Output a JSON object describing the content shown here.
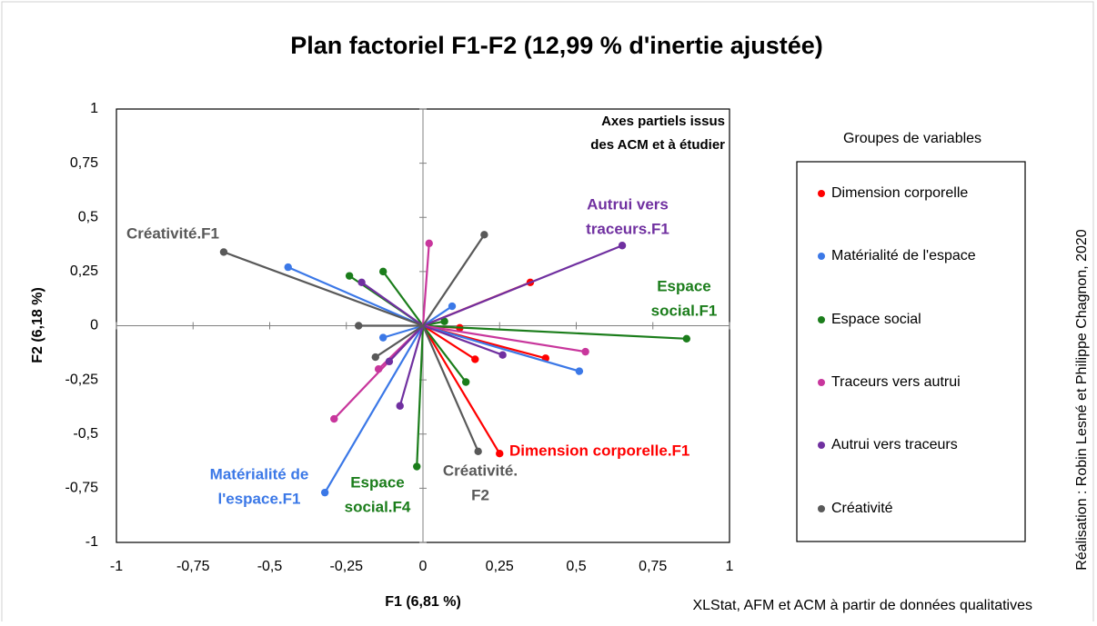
{
  "chart_data": {
    "type": "vector",
    "title": "Plan factoriel F1-F2 (12,99 % d'inertie ajustée)",
    "x_label": "F1 (6,81 %)",
    "y_label": "F2 (6,18 %)",
    "note": [
      "Axes partiels issus",
      "des ACM et à étudier"
    ],
    "legend_title": "Groupes de variables",
    "source": "XLStat, AFM et ACM à partir de données qualitatives",
    "credit": "Réalisation : Robin Lesné et Philippe Chagnon, 2020",
    "xlim": [
      -1,
      1
    ],
    "ylim": [
      -1,
      1
    ],
    "xticks": [
      -1,
      {
        "value": -0.75,
        "label": "-0,75"
      },
      {
        "value": -0.5,
        "label": "-0,5"
      },
      {
        "value": -0.25,
        "label": "-0,25"
      },
      0,
      {
        "value": 0.25,
        "label": "0,25"
      },
      {
        "value": 0.5,
        "label": "0,5"
      },
      {
        "value": 0.75,
        "label": "0,75"
      },
      1
    ],
    "yticks": [
      -1,
      {
        "value": -0.75,
        "label": "-0,75"
      },
      {
        "value": -0.5,
        "label": "-0,5"
      },
      {
        "value": -0.25,
        "label": "-0,25"
      },
      0,
      {
        "value": 0.25,
        "label": "0,25"
      },
      {
        "value": 0.5,
        "label": "0,5"
      },
      {
        "value": 0.75,
        "label": "0,75"
      },
      1
    ],
    "series": [
      {
        "name": "Dimension corporelle",
        "color": "#ff0000",
        "x": [
          0.35,
          0.4,
          0.25,
          0.17,
          0.12
        ],
        "values": [
          0.2,
          -0.15,
          -0.59,
          -0.155,
          -0.01
        ]
      },
      {
        "name": "Matérialité de l'espace",
        "color": "#3b78e7",
        "x": [
          -0.44,
          0.51,
          -0.32,
          -0.13,
          0.095
        ],
        "values": [
          0.27,
          -0.21,
          -0.77,
          -0.055,
          0.09
        ]
      },
      {
        "name": "Espace social",
        "color": "#1b7d1b",
        "x": [
          0.86,
          -0.24,
          -0.13,
          -0.02,
          0.14,
          0.07
        ],
        "values": [
          -0.06,
          0.23,
          0.25,
          -0.65,
          -0.26,
          0.02
        ]
      },
      {
        "name": "Traceurs vers autrui",
        "color": "#c8369c",
        "x": [
          0.02,
          0.53,
          -0.29,
          -0.145
        ],
        "values": [
          0.38,
          -0.12,
          -0.43,
          -0.2
        ]
      },
      {
        "name": "Autrui vers traceurs",
        "color": "#7030a0",
        "x": [
          0.65,
          -0.2,
          0.26,
          -0.075,
          -0.11
        ],
        "values": [
          0.37,
          0.2,
          -0.135,
          -0.37,
          -0.165
        ]
      },
      {
        "name": "Créativité",
        "color": "#595959",
        "x": [
          -0.65,
          0.2,
          0.18,
          -0.21,
          -0.155
        ],
        "values": [
          0.34,
          0.42,
          -0.58,
          0,
          -0.145
        ]
      }
    ],
    "annotations": [
      {
        "text": [
          "Créativité.F1"
        ],
        "color": "#595959"
      },
      {
        "text": [
          "Autrui vers",
          "traceurs.F1"
        ],
        "color": "#7030a0"
      },
      {
        "text": [
          "Espace",
          "social.F1"
        ],
        "color": "#1b7d1b"
      },
      {
        "text": [
          "Dimension corporelle.F1"
        ],
        "color": "#ff0000"
      },
      {
        "text": [
          "Créativité.",
          "F2"
        ],
        "color": "#595959"
      },
      {
        "text": [
          "Espace",
          "social.F4"
        ],
        "color": "#1b7d1b"
      },
      {
        "text": [
          "Matérialité de",
          "l'espace.F1"
        ],
        "color": "#3b78e7"
      }
    ]
  }
}
